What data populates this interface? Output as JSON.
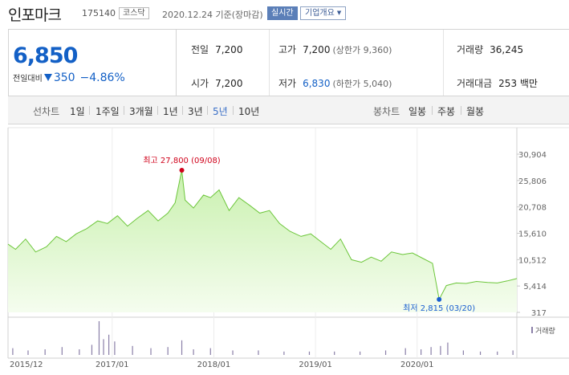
{
  "header": {
    "name": "인포마크",
    "code": "175140",
    "market": "코스닥",
    "date_text": "2020.12.24 기준(장마감)",
    "realtime_label": "실시간",
    "company_label": "기업개요",
    "company_icon": "chevron-down-icon"
  },
  "quote": {
    "price": "6,850",
    "change_label": "전일대비",
    "change_amount": "350",
    "change_percent": "−4.86%",
    "direction": "down",
    "stats": {
      "prev_close": {
        "label": "전일",
        "value": "7,200"
      },
      "open": {
        "label": "시가",
        "value": "7,200"
      },
      "high": {
        "label": "고가",
        "value": "7,200",
        "sub": "(상한가 9,360)"
      },
      "low": {
        "label": "저가",
        "value": "6,830",
        "sub": "(하한가 5,040)"
      },
      "volume": {
        "label": "거래량",
        "value": "36,245"
      },
      "turnover": {
        "label": "거래대금",
        "value": "253 백만"
      }
    }
  },
  "periods": {
    "line_label": "선차트",
    "line_items": [
      "1일",
      "1주일",
      "3개월",
      "1년",
      "3년",
      "5년",
      "10년"
    ],
    "active": "5년",
    "candle_label": "봉차트",
    "candle_items": [
      "일봉",
      "주봉",
      "월봉"
    ]
  },
  "colors": {
    "down": "#1360c6",
    "line": "#6cc63a",
    "fill_top": "#c8f0ad",
    "fill_bottom": "#f5fdef",
    "high_marker": "#d0021b",
    "low_marker": "#1a5fd0",
    "volume": "#8a7fa8"
  },
  "chart_data": {
    "type": "area",
    "y_ticks": [
      "30,904",
      "25,806",
      "20,708",
      "15,610",
      "10,512",
      "5,414",
      "317"
    ],
    "ylim": [
      317,
      30904
    ],
    "x_ticks": [
      "2015/12",
      "2017/01",
      "2018/01",
      "2019/01",
      "2020/01"
    ],
    "x_tick_dates": [
      "2015-12-24",
      "2017-01-01",
      "2018-01-01",
      "2019-01-01",
      "2020-01-01"
    ],
    "x_range": [
      "2015-12-24",
      "2020-12-24"
    ],
    "high_annotation": "최고 27,800 (09/08)",
    "low_annotation": "최저 2,815 (03/20)",
    "volume_label": "거래량",
    "series": [
      {
        "x": [
          "2015-12-24",
          "2016-01-20",
          "2016-02-25",
          "2016-04-01",
          "2016-05-10",
          "2016-06-15",
          "2016-07-20",
          "2016-08-25",
          "2016-10-01",
          "2016-11-10",
          "2016-12-15",
          "2017-01-20",
          "2017-02-25",
          "2017-04-01",
          "2017-05-10",
          "2017-06-15",
          "2017-07-20",
          "2017-08-15",
          "2017-09-08",
          "2017-09-20",
          "2017-10-20",
          "2017-11-25",
          "2017-12-20",
          "2018-01-20",
          "2018-02-25",
          "2018-04-01",
          "2018-05-10",
          "2018-06-15",
          "2018-07-20",
          "2018-08-25",
          "2018-10-01",
          "2018-11-10",
          "2018-12-15",
          "2019-01-20",
          "2019-02-25",
          "2019-04-01",
          "2019-05-10",
          "2019-06-15",
          "2019-07-20",
          "2019-08-25",
          "2019-10-01",
          "2019-11-10",
          "2019-12-15",
          "2020-01-20",
          "2020-02-25",
          "2020-03-20",
          "2020-04-15",
          "2020-05-20",
          "2020-06-25",
          "2020-08-01",
          "2020-09-10",
          "2020-10-15",
          "2020-11-20",
          "2020-12-24"
        ],
        "y": [
          13500,
          12500,
          14500,
          12000,
          13000,
          15000,
          14000,
          15500,
          16500,
          18000,
          17500,
          19000,
          17000,
          18500,
          20000,
          18000,
          19500,
          21500,
          27800,
          22000,
          20500,
          23000,
          22500,
          24000,
          20000,
          22500,
          21000,
          19500,
          20000,
          17500,
          16000,
          15000,
          15500,
          14000,
          12500,
          14500,
          10500,
          10000,
          11000,
          10200,
          12000,
          11500,
          11800,
          10800,
          9800,
          2815,
          5500,
          6000,
          5900,
          6300,
          6100,
          6000,
          6400,
          6850
        ]
      }
    ],
    "volume": {
      "x": [
        "2016-01-10",
        "2016-03-05",
        "2016-05-05",
        "2016-07-05",
        "2016-09-05",
        "2016-10-20",
        "2016-11-15",
        "2016-12-01",
        "2016-12-20",
        "2017-01-10",
        "2017-03-15",
        "2017-05-20",
        "2017-07-20",
        "2017-09-08",
        "2017-10-20",
        "2017-12-20",
        "2018-03-10",
        "2018-06-10",
        "2018-09-10",
        "2018-12-10",
        "2019-03-10",
        "2019-06-10",
        "2019-09-10",
        "2019-11-20",
        "2020-01-15",
        "2020-02-20",
        "2020-03-25",
        "2020-04-20",
        "2020-06-15",
        "2020-08-15",
        "2020-10-15",
        "2020-12-10"
      ],
      "values": [
        6,
        4,
        5,
        7,
        5,
        9,
        30,
        14,
        18,
        12,
        8,
        6,
        7,
        13,
        5,
        6,
        4,
        4,
        3,
        3,
        3,
        3,
        4,
        6,
        5,
        7,
        8,
        11,
        4,
        3,
        3,
        4
      ]
    }
  }
}
